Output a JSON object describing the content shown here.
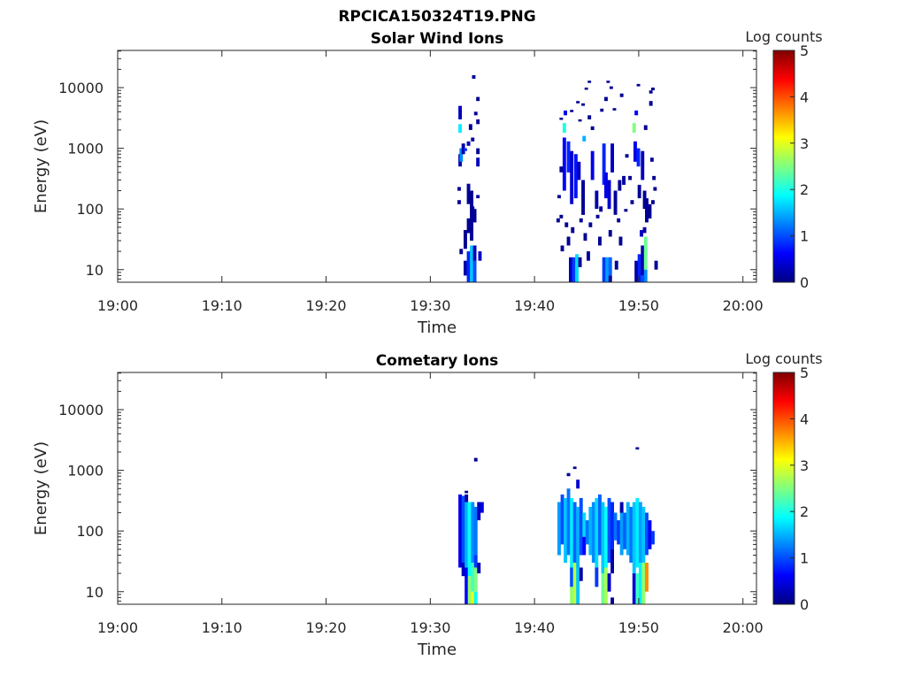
{
  "chart_data": [
    {
      "type": "heatmap",
      "title": "RPCICA150324T19.PNG",
      "subtitle": "Solar Wind Ions",
      "xlabel": "Time",
      "ylabel": "Energy (eV)",
      "x_units": "minutes after 19:00",
      "xlim": [
        0,
        61.3
      ],
      "ylim": [
        6.2,
        41000
      ],
      "yscale": "log",
      "xticks": [
        "19:00",
        "19:10",
        "19:20",
        "19:30",
        "19:40",
        "19:50",
        "20:00"
      ],
      "yticks": [
        "10",
        "100",
        "1000",
        "10000"
      ],
      "colorbar": {
        "label": "Log counts",
        "range": [
          0,
          5
        ],
        "ticks": [
          "0",
          "1",
          "2",
          "3",
          "4",
          "5"
        ],
        "colormap": "jet"
      },
      "segments_format": [
        "time_min",
        "energy_min_eV",
        "energy_max_eV",
        "log_counts"
      ],
      "segments": [
        [
          33.2,
          8,
          14,
          0.2
        ],
        [
          33.5,
          6.2,
          20,
          0.8
        ],
        [
          33.8,
          6.2,
          25,
          1.6
        ],
        [
          34.1,
          6.2,
          14,
          1.0
        ],
        [
          34.1,
          14,
          25,
          0.3
        ],
        [
          34.6,
          14,
          20,
          0.3
        ],
        [
          32.8,
          18,
          22,
          0.1
        ],
        [
          33.2,
          22,
          45,
          0.1
        ],
        [
          33.5,
          40,
          70,
          0.1
        ],
        [
          33.8,
          30,
          200,
          0.1
        ],
        [
          34.1,
          60,
          100,
          0.1
        ],
        [
          33.5,
          120,
          260,
          0.1
        ],
        [
          32.6,
          120,
          140,
          0.1
        ],
        [
          33.9,
          90,
          110,
          0.1
        ],
        [
          32.6,
          200,
          230,
          0.1
        ],
        [
          34.4,
          150,
          170,
          0.2
        ],
        [
          32.7,
          500,
          800,
          0.2
        ],
        [
          32.8,
          600,
          1000,
          1.3
        ],
        [
          33.0,
          800,
          1200,
          0.2
        ],
        [
          33.2,
          900,
          1000,
          0.8
        ],
        [
          33.5,
          1100,
          1300,
          0.3
        ],
        [
          34.4,
          500,
          700,
          0.3
        ],
        [
          34.4,
          800,
          1000,
          0.1
        ],
        [
          32.7,
          1800,
          2500,
          1.8
        ],
        [
          32.7,
          3000,
          5000,
          0.3
        ],
        [
          34.2,
          3500,
          4000,
          0.1
        ],
        [
          34.4,
          2500,
          3000,
          0.1
        ],
        [
          33.7,
          2000,
          2500,
          0.1
        ],
        [
          34.4,
          6000,
          7000,
          0.1
        ],
        [
          34.0,
          14000,
          16000,
          0.1
        ],
        [
          33.9,
          1300,
          1500,
          0.1
        ],
        [
          43.3,
          6.2,
          16,
          0.3
        ],
        [
          43.6,
          6.2,
          16,
          0.9
        ],
        [
          43.9,
          6.2,
          18,
          1.7
        ],
        [
          44.2,
          11,
          16,
          0.1
        ],
        [
          46.5,
          6.2,
          16,
          0.9
        ],
        [
          46.8,
          6.2,
          16,
          1.4
        ],
        [
          47.1,
          6.2,
          8,
          0.1
        ],
        [
          47.1,
          8,
          16,
          1.1
        ],
        [
          49.6,
          6.2,
          14,
          0.2
        ],
        [
          49.9,
          6.2,
          18,
          0.8
        ],
        [
          50.2,
          8,
          25,
          0.2
        ],
        [
          50.5,
          10,
          35,
          2.4
        ],
        [
          50.5,
          6.2,
          10,
          1.3
        ],
        [
          50.2,
          6.2,
          8,
          1.0
        ],
        [
          51.5,
          10,
          14,
          0.1
        ],
        [
          45.0,
          14,
          20,
          0.1
        ],
        [
          47.7,
          10,
          14,
          0.1
        ],
        [
          42.5,
          20,
          25,
          0.1
        ],
        [
          43.1,
          25,
          35,
          0.1
        ],
        [
          44.7,
          30,
          40,
          0.1
        ],
        [
          46.1,
          25,
          35,
          0.1
        ],
        [
          47.1,
          35,
          45,
          0.1
        ],
        [
          48.1,
          25,
          35,
          0.1
        ],
        [
          50.1,
          35,
          45,
          0.3
        ],
        [
          50.4,
          40,
          50,
          0.2
        ],
        [
          42.7,
          200,
          1500,
          0.6
        ],
        [
          43.1,
          400,
          1300,
          0.8
        ],
        [
          43.4,
          120,
          900,
          0.4
        ],
        [
          43.8,
          150,
          800,
          0.7
        ],
        [
          44.1,
          300,
          600,
          0.3
        ],
        [
          44.5,
          80,
          300,
          0.1
        ],
        [
          45.4,
          300,
          900,
          0.5
        ],
        [
          45.8,
          100,
          200,
          0.2
        ],
        [
          46.5,
          250,
          1200,
          0.8
        ],
        [
          46.7,
          150,
          400,
          0.5
        ],
        [
          47.0,
          100,
          300,
          0.4
        ],
        [
          47.3,
          400,
          1200,
          0.3
        ],
        [
          47.6,
          80,
          200,
          0.1
        ],
        [
          48.0,
          200,
          300,
          0.1
        ],
        [
          48.4,
          250,
          350,
          0.2
        ],
        [
          49.5,
          600,
          1300,
          0.5
        ],
        [
          49.8,
          500,
          1000,
          0.8
        ],
        [
          50.2,
          300,
          900,
          0.3
        ],
        [
          49.9,
          150,
          250,
          0.1
        ],
        [
          50.4,
          100,
          200,
          0.1
        ],
        [
          50.6,
          60,
          150,
          0.1
        ],
        [
          50.9,
          70,
          120,
          0.1
        ],
        [
          42.7,
          1800,
          2600,
          2.0
        ],
        [
          44.6,
          1300,
          1600,
          1.5
        ],
        [
          49.4,
          1800,
          2600,
          2.5
        ],
        [
          49.6,
          3500,
          4200,
          0.6
        ],
        [
          42.8,
          3500,
          4200,
          0.5
        ],
        [
          42.4,
          3000,
          3200,
          0.1
        ],
        [
          43.4,
          4000,
          4300,
          0.1
        ],
        [
          44.0,
          5500,
          6000,
          0.1
        ],
        [
          44.5,
          5000,
          5500,
          0.1
        ],
        [
          44.8,
          9500,
          10000,
          0.1
        ],
        [
          45.1,
          12000,
          13000,
          0.1
        ],
        [
          44.2,
          2800,
          3000,
          0.1
        ],
        [
          45.1,
          3000,
          3500,
          0.1
        ],
        [
          45.4,
          2000,
          2300,
          0.1
        ],
        [
          46.3,
          4000,
          4500,
          0.1
        ],
        [
          46.7,
          6000,
          7000,
          0.1
        ],
        [
          46.9,
          12000,
          13000,
          0.1
        ],
        [
          47.2,
          9500,
          10500,
          0.1
        ],
        [
          47.5,
          4200,
          4600,
          0.1
        ],
        [
          48.2,
          7000,
          8000,
          0.1
        ],
        [
          49.8,
          10500,
          11500,
          0.1
        ],
        [
          51.0,
          8000,
          9000,
          0.1
        ],
        [
          51.2,
          9000,
          10000,
          0.1
        ],
        [
          51.0,
          5000,
          6000,
          0.1
        ],
        [
          50.5,
          2000,
          2400,
          0.1
        ],
        [
          42.1,
          60,
          70,
          0.1
        ],
        [
          42.4,
          70,
          80,
          0.1
        ],
        [
          42.9,
          50,
          60,
          0.1
        ],
        [
          43.5,
          40,
          50,
          0.1
        ],
        [
          44.3,
          60,
          70,
          0.1
        ],
        [
          45.2,
          50,
          60,
          0.1
        ],
        [
          45.9,
          70,
          80,
          0.1
        ],
        [
          46.2,
          90,
          110,
          0.1
        ],
        [
          47.9,
          60,
          70,
          0.1
        ],
        [
          48.6,
          90,
          100,
          0.1
        ],
        [
          49.2,
          120,
          140,
          0.1
        ],
        [
          51.2,
          120,
          140,
          0.1
        ],
        [
          51.4,
          200,
          230,
          0.1
        ],
        [
          42.4,
          400,
          500,
          0.1
        ],
        [
          42.2,
          150,
          170,
          0.1
        ],
        [
          48.7,
          700,
          800,
          0.1
        ],
        [
          49.0,
          300,
          350,
          0.1
        ],
        [
          51.1,
          600,
          700,
          0.1
        ],
        [
          51.3,
          300,
          350,
          0.1
        ]
      ]
    },
    {
      "type": "heatmap",
      "subtitle": "Cometary Ions",
      "xlabel": "Time",
      "ylabel": "Energy (eV)",
      "x_units": "minutes after 19:00",
      "xlim": [
        0,
        61.3
      ],
      "ylim": [
        6.2,
        41000
      ],
      "yscale": "log",
      "xticks": [
        "19:00",
        "19:10",
        "19:20",
        "19:30",
        "19:40",
        "19:50",
        "20:00"
      ],
      "yticks": [
        "10",
        "100",
        "1000",
        "10000"
      ],
      "colorbar": {
        "label": "Log counts",
        "range": [
          0,
          5
        ],
        "ticks": [
          "0",
          "1",
          "2",
          "3",
          "4",
          "5"
        ],
        "colormap": "jet"
      },
      "segments_format": [
        "time_min",
        "energy_min_eV",
        "energy_max_eV",
        "log_counts"
      ],
      "segments": [
        [
          32.7,
          25,
          400,
          0.5
        ],
        [
          33.0,
          30,
          380,
          1.0
        ],
        [
          33.0,
          18,
          30,
          0.3
        ],
        [
          33.3,
          25,
          300,
          1.5
        ],
        [
          33.3,
          6.2,
          25,
          0.6
        ],
        [
          33.3,
          300,
          400,
          0.2
        ],
        [
          33.6,
          18,
          300,
          1.9
        ],
        [
          33.6,
          6.2,
          18,
          2.6
        ],
        [
          33.9,
          30,
          300,
          1.3
        ],
        [
          33.9,
          10,
          30,
          2.2
        ],
        [
          33.9,
          6.2,
          10,
          3.0
        ],
        [
          34.2,
          40,
          250,
          1.2
        ],
        [
          34.2,
          25,
          40,
          0.9
        ],
        [
          34.2,
          10,
          25,
          2.5
        ],
        [
          34.2,
          6.2,
          10,
          1.9
        ],
        [
          34.5,
          150,
          300,
          0.3
        ],
        [
          34.5,
          20,
          30,
          0.2
        ],
        [
          34.8,
          200,
          300,
          0.5
        ],
        [
          34.2,
          1400,
          1600,
          0.1
        ],
        [
          33.3,
          420,
          460,
          0.1
        ],
        [
          42.2,
          40,
          300,
          1.4
        ],
        [
          42.5,
          60,
          400,
          1.0
        ],
        [
          42.8,
          30,
          350,
          1.6
        ],
        [
          43.1,
          40,
          500,
          1.2
        ],
        [
          43.1,
          800,
          900,
          0.1
        ],
        [
          43.4,
          25,
          350,
          1.8
        ],
        [
          43.4,
          12,
          25,
          1.0
        ],
        [
          43.4,
          6.2,
          12,
          2.6
        ],
        [
          43.7,
          30,
          300,
          1.1
        ],
        [
          43.7,
          6.2,
          30,
          2.8
        ],
        [
          44.0,
          25,
          250,
          1.5
        ],
        [
          44.0,
          6.2,
          25,
          1.6
        ],
        [
          44.0,
          500,
          700,
          0.4
        ],
        [
          44.3,
          40,
          350,
          1.0
        ],
        [
          44.3,
          15,
          25,
          0.2
        ],
        [
          44.6,
          80,
          200,
          1.7
        ],
        [
          44.6,
          40,
          80,
          0.6
        ],
        [
          44.9,
          60,
          150,
          1.2
        ],
        [
          45.2,
          40,
          250,
          1.5
        ],
        [
          45.5,
          30,
          300,
          1.3
        ],
        [
          45.8,
          25,
          350,
          1.7
        ],
        [
          45.8,
          12,
          25,
          0.9
        ],
        [
          46.1,
          40,
          400,
          1.1
        ],
        [
          46.4,
          20,
          300,
          1.6
        ],
        [
          46.4,
          6.2,
          20,
          2.4
        ],
        [
          46.7,
          25,
          250,
          1.9
        ],
        [
          46.7,
          6.2,
          25,
          2.7
        ],
        [
          47.0,
          30,
          350,
          1.0
        ],
        [
          47.0,
          10,
          20,
          0.3
        ],
        [
          47.3,
          50,
          300,
          0.8
        ],
        [
          47.3,
          20,
          50,
          0.2
        ],
        [
          47.3,
          6.2,
          8,
          0.1
        ],
        [
          47.6,
          70,
          200,
          1.2
        ],
        [
          47.9,
          60,
          150,
          0.9
        ],
        [
          48.2,
          40,
          250,
          1.4
        ],
        [
          48.2,
          200,
          300,
          0.2
        ],
        [
          48.5,
          50,
          200,
          1.1
        ],
        [
          48.8,
          40,
          300,
          1.5
        ],
        [
          49.1,
          30,
          250,
          1.2
        ],
        [
          49.4,
          20,
          300,
          1.6
        ],
        [
          49.4,
          6.2,
          20,
          0.4
        ],
        [
          49.7,
          25,
          350,
          1.8
        ],
        [
          49.7,
          6.2,
          20,
          2.2
        ],
        [
          50.0,
          30,
          300,
          1.4
        ],
        [
          50.0,
          6.2,
          30,
          1.8
        ],
        [
          50.3,
          30,
          250,
          1.6
        ],
        [
          50.3,
          6.2,
          30,
          2.6
        ],
        [
          50.6,
          40,
          200,
          1.0
        ],
        [
          50.6,
          10,
          30,
          3.7
        ],
        [
          50.9,
          50,
          150,
          0.6
        ],
        [
          51.2,
          60,
          100,
          0.9
        ],
        [
          49.7,
          2200,
          2400,
          0.1
        ],
        [
          43.7,
          1050,
          1150,
          0.1
        ]
      ]
    }
  ]
}
